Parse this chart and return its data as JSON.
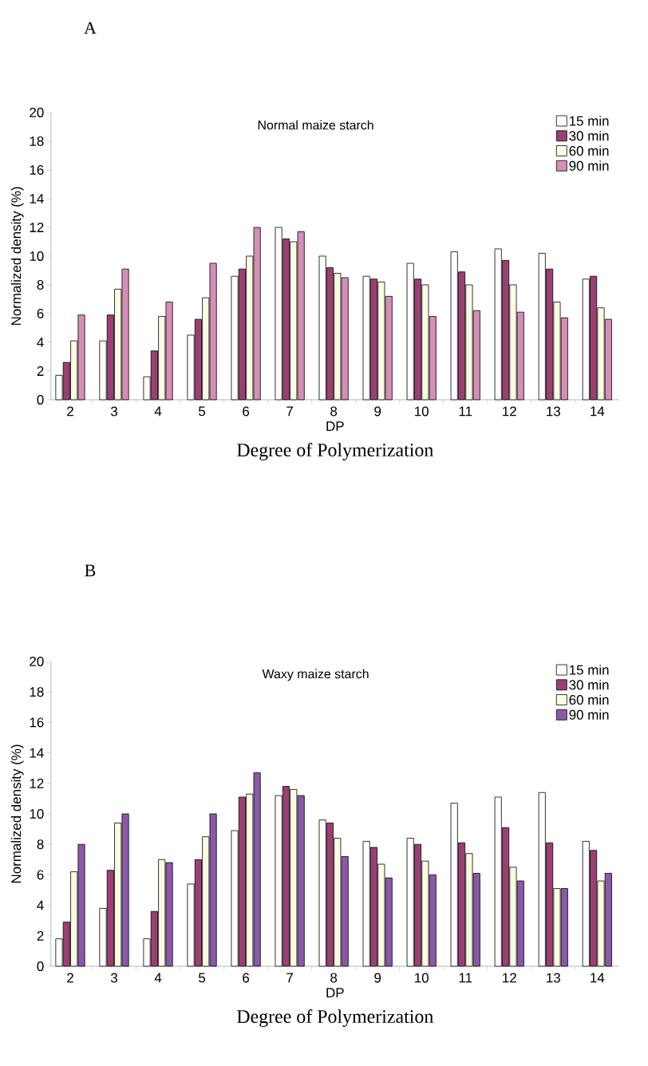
{
  "chart_data": [
    {
      "type": "bar",
      "title": "Normal maize starch",
      "xlabel": "DP",
      "ylabel": "Normalized density (%)",
      "annotations": [
        "A",
        "Degree of Polymerization"
      ],
      "categories": [
        "2",
        "3",
        "4",
        "5",
        "6",
        "7",
        "8",
        "9",
        "10",
        "11",
        "12",
        "13",
        "14"
      ],
      "series": [
        {
          "name": "15 min",
          "color": "#ffffff",
          "values": [
            1.7,
            4.1,
            1.6,
            4.5,
            8.6,
            12.0,
            10.0,
            8.6,
            9.5,
            10.3,
            10.5,
            10.2,
            8.4
          ]
        },
        {
          "name": "30 min",
          "color": "#9b3f72",
          "values": [
            2.6,
            5.9,
            3.4,
            5.6,
            9.1,
            11.2,
            9.2,
            8.4,
            8.4,
            8.9,
            9.7,
            9.1,
            8.6
          ]
        },
        {
          "name": "60 min",
          "color": "#fbfbe4",
          "values": [
            4.1,
            7.7,
            5.8,
            7.1,
            10.0,
            11.0,
            8.8,
            8.2,
            8.0,
            8.0,
            8.0,
            6.8,
            6.4
          ]
        },
        {
          "name": "90 min",
          "color": "#d58fb7",
          "values": [
            5.9,
            9.1,
            6.8,
            9.5,
            12.0,
            11.7,
            8.5,
            7.2,
            5.8,
            6.2,
            6.1,
            5.7,
            5.6
          ]
        }
      ],
      "ylim": [
        0,
        20
      ],
      "yticks": [
        0,
        2,
        4,
        6,
        8,
        10,
        12,
        14,
        16,
        18,
        20
      ],
      "legend": "top right"
    },
    {
      "type": "bar",
      "title": "Waxy maize starch",
      "xlabel": "DP",
      "ylabel": "Normalized density (%)",
      "annotations": [
        "B",
        "Degree of Polymerization"
      ],
      "categories": [
        "2",
        "3",
        "4",
        "5",
        "6",
        "7",
        "8",
        "9",
        "10",
        "11",
        "12",
        "13",
        "14"
      ],
      "series": [
        {
          "name": "15 min",
          "color": "#ffffff",
          "values": [
            1.8,
            3.8,
            1.8,
            5.4,
            8.9,
            11.2,
            9.6,
            8.2,
            8.4,
            10.7,
            11.1,
            11.4,
            8.2
          ]
        },
        {
          "name": "30 min",
          "color": "#9b3f72",
          "values": [
            2.9,
            6.3,
            3.6,
            7.0,
            11.1,
            11.8,
            9.4,
            7.8,
            8.0,
            8.1,
            9.1,
            8.1,
            7.6
          ]
        },
        {
          "name": "60 min",
          "color": "#fbfbe4",
          "values": [
            6.2,
            9.4,
            7.0,
            8.5,
            11.3,
            11.6,
            8.4,
            6.7,
            6.9,
            7.4,
            6.5,
            5.1,
            5.6
          ]
        },
        {
          "name": "90 min",
          "color": "#8a5aa8",
          "values": [
            8.0,
            10.0,
            6.8,
            10.0,
            12.7,
            11.2,
            7.2,
            5.8,
            6.0,
            6.1,
            5.6,
            5.1,
            6.1
          ]
        }
      ],
      "ylim": [
        0,
        20
      ],
      "yticks": [
        0,
        2,
        4,
        6,
        8,
        10,
        12,
        14,
        16,
        18,
        20
      ],
      "legend": "top right"
    }
  ]
}
